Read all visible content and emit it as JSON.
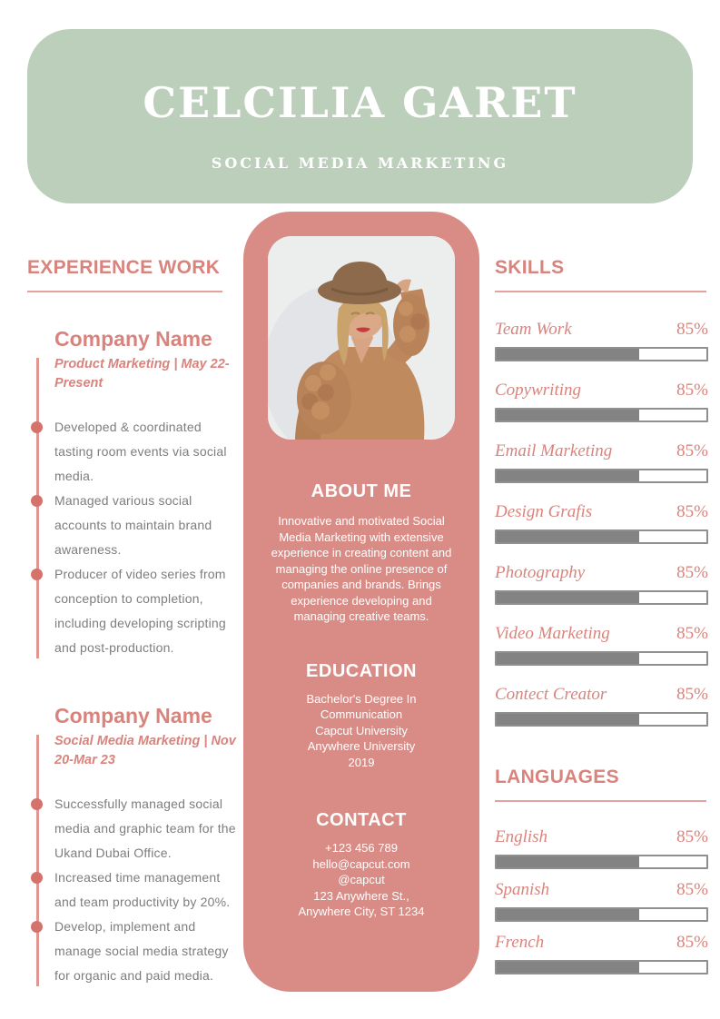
{
  "header": {
    "name": "CELCILIA GARET",
    "subtitle": "SOCIAL MEDIA MARKETING"
  },
  "experience": {
    "title": "EXPERIENCE WORK",
    "jobs": [
      {
        "company": "Company Name",
        "meta": "Product Marketing | May 22-Present",
        "bullets": [
          "Developed & coordinated tasting room events via social media.",
          "Managed various social accounts to maintain brand awareness.",
          "Producer of video series from conception to completion, including developing scripting and post-production."
        ]
      },
      {
        "company": "Company Name",
        "meta": "Social Media Marketing | Nov 20-Mar 23",
        "bullets": [
          "Successfully managed social media and graphic team for the Ukand Dubai Office.",
          "Increased time management and team productivity by 20%.",
          "Develop, implement and manage social media strategy for organic and paid media."
        ]
      }
    ]
  },
  "profile": {
    "photo": "portrait of woman in brown knit sweater and hat",
    "about": {
      "title": "ABOUT ME",
      "text": "Innovative and motivated Social Media Marketing with extensive experience in creating content and managing the online presence of companies and brands. Brings experience developing and managing creative teams."
    },
    "education": {
      "title": "EDUCATION",
      "lines": [
        "Bachelor's Degree In Communication",
        "Capcut University",
        "Anywhere University",
        "2019"
      ]
    },
    "contact": {
      "title": "CONTACT",
      "lines": [
        "+123  456 789",
        "hello@capcut.com",
        "@capcut",
        "123 Anywhere St.,",
        "Anywhere City, ST 1234"
      ]
    }
  },
  "skills": {
    "title": "SKILLS",
    "items": [
      {
        "label": "Team Work",
        "percent": "85%",
        "fill": 68
      },
      {
        "label": "Copywriting",
        "percent": "85%",
        "fill": 68
      },
      {
        "label": "Email Marketing",
        "percent": "85%",
        "fill": 68
      },
      {
        "label": "Design Grafis",
        "percent": "85%",
        "fill": 68
      },
      {
        "label": "Photography",
        "percent": "85%",
        "fill": 68
      },
      {
        "label": "Video Marketing",
        "percent": "85%",
        "fill": 68
      },
      {
        "label": "Contect Creator",
        "percent": "85%",
        "fill": 68
      }
    ]
  },
  "languages": {
    "title": "LANGUAGES",
    "items": [
      {
        "label": "English",
        "percent": "85%",
        "fill": 68
      },
      {
        "label": "Spanish",
        "percent": "85%",
        "fill": 68
      },
      {
        "label": "French",
        "percent": "85%",
        "fill": 68
      }
    ]
  },
  "colors": {
    "banner_green": "#bccfba",
    "column_pink": "#d98c86",
    "accent_pink_text": "#d9837d",
    "bullet_dot": "#d4736c",
    "body_gray": "#7d7d7d",
    "bar_fill_gray": "#838383",
    "bar_border_gray": "#8f8f8f"
  }
}
